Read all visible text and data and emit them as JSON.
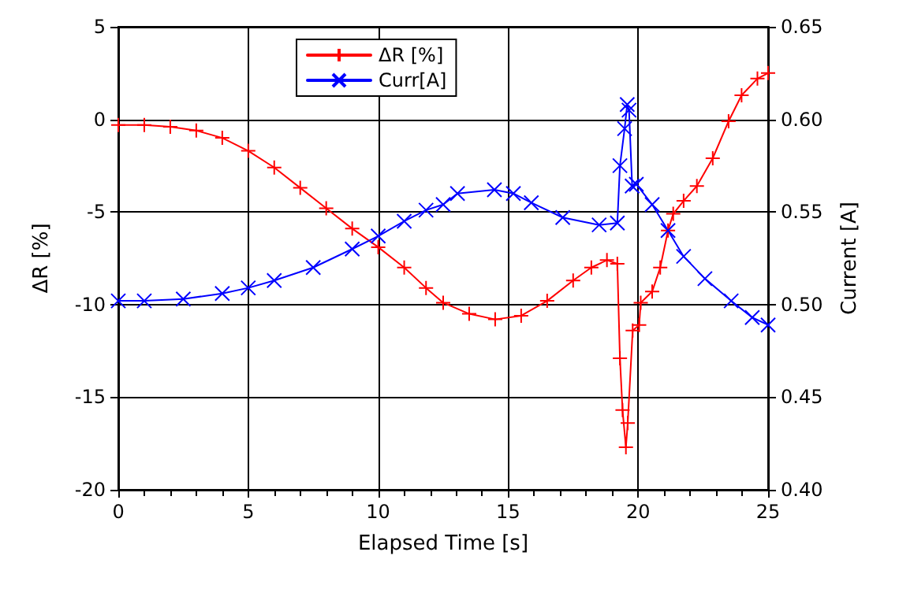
{
  "chart_data": {
    "type": "line",
    "xlabel": "Elapsed Time [s]",
    "ylabel": "ΔR [%]",
    "y2label": "Current [A]",
    "xlim": [
      0,
      25
    ],
    "xticks": [
      0,
      5,
      10,
      15,
      20,
      25
    ],
    "ylim": [
      -20,
      5
    ],
    "yticks": [
      -20,
      -15,
      -10,
      -5,
      0,
      5
    ],
    "y2lim": [
      0.4,
      0.65
    ],
    "y2ticks": [
      {
        "value": 0.4,
        "label": "0.40"
      },
      {
        "value": 0.45,
        "label": "0.45"
      },
      {
        "value": 0.5,
        "label": "0.50"
      },
      {
        "value": 0.55,
        "label": "0.55"
      },
      {
        "value": 0.6,
        "label": "0.60"
      },
      {
        "value": 0.65,
        "label": "0.65"
      }
    ],
    "grid": true,
    "legend": "top",
    "line_style": "solid",
    "series": [
      {
        "name": "ΔR [%]",
        "color": "#ff0000",
        "marker": "cross",
        "x": [
          0,
          1,
          2,
          3,
          4,
          5,
          6,
          7,
          8,
          9,
          10,
          11,
          11.84,
          12.5,
          13.5,
          14.5,
          15.5,
          16.5,
          17.5,
          18.2,
          18.8,
          19.2,
          19.3,
          19.4,
          19.53,
          19.6,
          19.79,
          20.04,
          20.1,
          20.54,
          20.85,
          21.15,
          21.35,
          21.75,
          22.26,
          22.87,
          23.48,
          23.98,
          24.59,
          25
        ],
        "values": [
          -0.3,
          -0.3,
          -0.4,
          -0.6,
          -1.0,
          -1.7,
          -2.6,
          -3.7,
          -4.8,
          -5.9,
          -6.9,
          -8.0,
          -9.1,
          -9.9,
          -10.5,
          -10.8,
          -10.6,
          -9.8,
          -8.7,
          -8.0,
          -7.6,
          -7.8,
          -12.9,
          -15.7,
          -17.7,
          -16.4,
          -11.4,
          -11.1,
          -9.9,
          -9.3,
          -8.0,
          -6.0,
          -5.1,
          -4.4,
          -3.6,
          -2.1,
          -0.1,
          1.3,
          2.2,
          2.5
        ]
      },
      {
        "name": "Curr[A]",
        "color": "#0000ff",
        "marker": "x",
        "axis": "y2",
        "x": [
          0,
          1,
          2.5,
          4,
          5,
          6,
          7.5,
          9,
          10,
          11,
          11.84,
          12.5,
          13.05,
          14.47,
          15.2,
          15.89,
          17.1,
          18.5,
          19.2,
          19.3,
          19.48,
          19.58,
          19.65,
          19.77,
          19.93,
          20.54,
          21.15,
          21.75,
          22.57,
          23.58,
          24.39,
          25
        ],
        "values": [
          0.502,
          0.502,
          0.503,
          0.506,
          0.509,
          0.513,
          0.52,
          0.53,
          0.537,
          0.545,
          0.551,
          0.554,
          0.56,
          0.562,
          0.56,
          0.555,
          0.547,
          0.543,
          0.544,
          0.575,
          0.595,
          0.608,
          0.605,
          0.564,
          0.565,
          0.554,
          0.54,
          0.526,
          0.514,
          0.502,
          0.493,
          0.489
        ]
      }
    ]
  }
}
